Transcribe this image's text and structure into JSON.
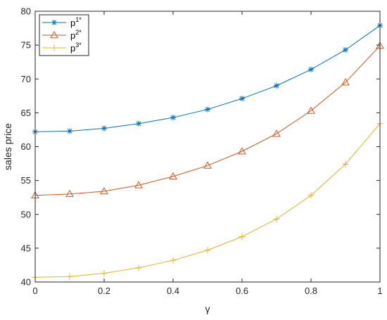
{
  "chart_data": {
    "type": "line",
    "title": "",
    "xlabel": "γ",
    "ylabel": "sales price",
    "xlim": [
      0,
      1
    ],
    "ylim": [
      40,
      80
    ],
    "x_ticks": [
      "0",
      "0.2",
      "0.4",
      "0.6",
      "0.8",
      "1"
    ],
    "y_ticks": [
      "40",
      "45",
      "50",
      "55",
      "60",
      "65",
      "70",
      "75",
      "80"
    ],
    "grid": false,
    "legend_placement": "top-left",
    "x": [
      0,
      0.1,
      0.2,
      0.3,
      0.4,
      0.5,
      0.6,
      0.7,
      0.8,
      0.9,
      1.0
    ],
    "series": [
      {
        "name": "p",
        "sup": "1*",
        "color": "#0072BD",
        "marker": "asterisk",
        "values": [
          62.2,
          62.3,
          62.7,
          63.4,
          64.3,
          65.5,
          67.1,
          69.0,
          71.4,
          74.3,
          77.9
        ]
      },
      {
        "name": "p",
        "sup": "2*",
        "color": "#D95319",
        "marker": "triangle",
        "values": [
          52.8,
          53.0,
          53.4,
          54.3,
          55.6,
          57.2,
          59.3,
          61.9,
          65.3,
          69.5,
          74.9
        ]
      },
      {
        "name": "p",
        "sup": "3*",
        "color": "#EDB120",
        "marker": "plus",
        "values": [
          40.7,
          40.8,
          41.3,
          42.1,
          43.2,
          44.7,
          46.7,
          49.3,
          52.8,
          57.4,
          63.4
        ]
      }
    ]
  }
}
